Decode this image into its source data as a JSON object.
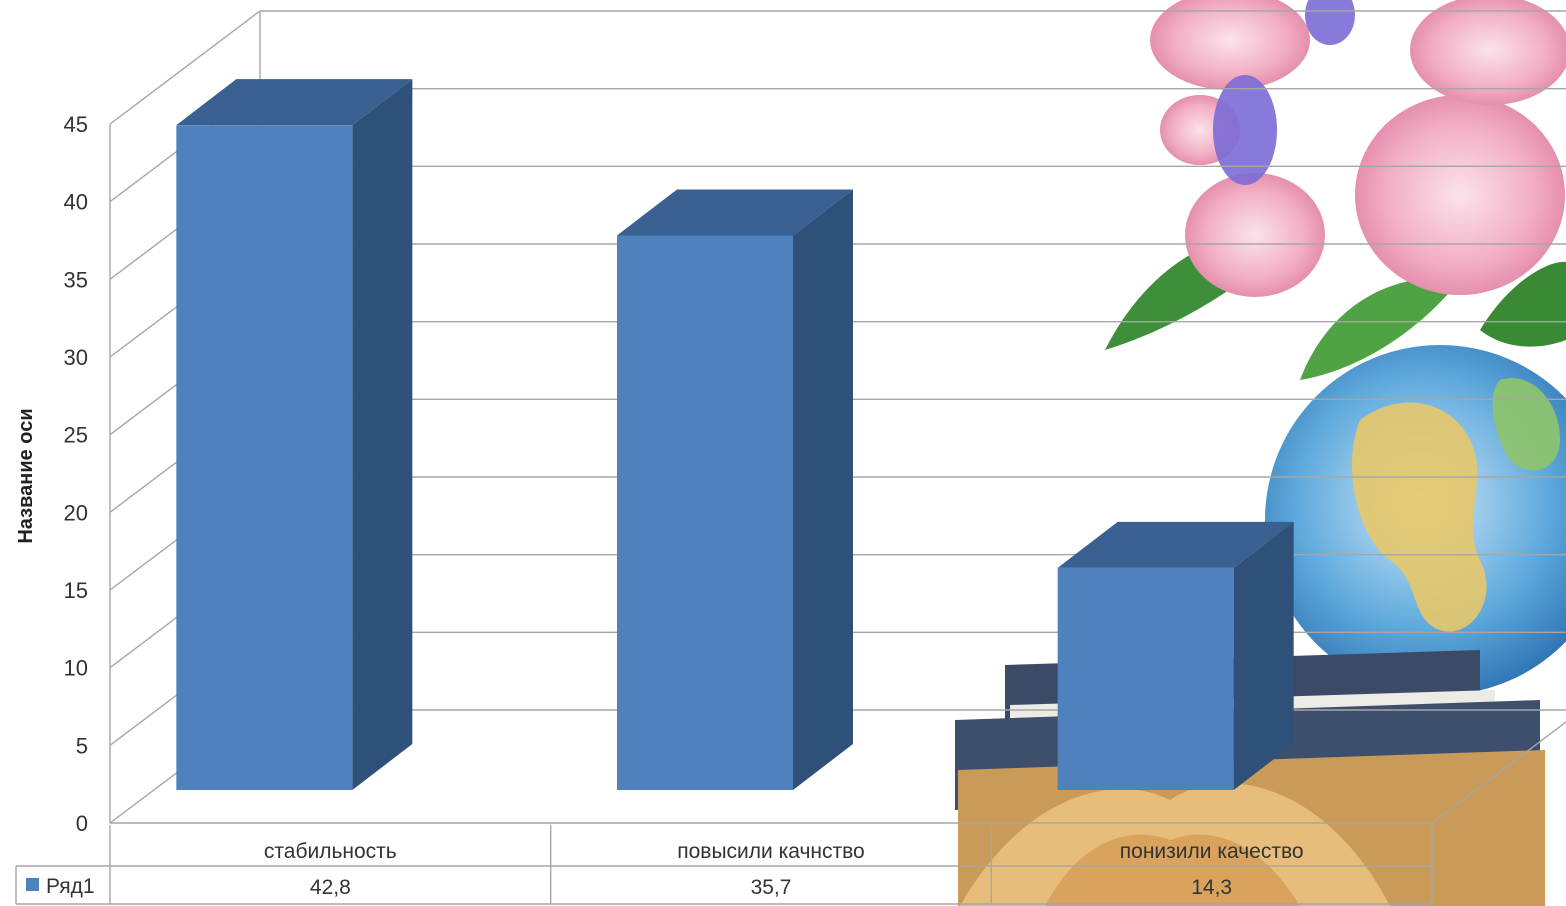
{
  "chart_data": {
    "type": "bar",
    "style": "3d-column-with-data-table",
    "title": "",
    "xlabel": "",
    "ylabel": "Название оси",
    "ylim": [
      0,
      45
    ],
    "ytick_step": 5,
    "grid": true,
    "categories": [
      "стабильность",
      "повысили качнство",
      "понизили качество"
    ],
    "series": [
      {
        "name": "Ряд1",
        "values": [
          42.8,
          35.7,
          14.3
        ],
        "labels": [
          "42,8",
          "35,7",
          "14,3"
        ],
        "color": "#4F81BD"
      }
    ],
    "data_table": true,
    "background_image": "flowers-globe-books-photo"
  }
}
